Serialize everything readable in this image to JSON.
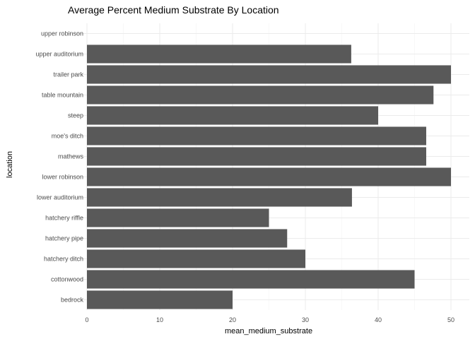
{
  "chart_data": {
    "type": "bar",
    "orientation": "horizontal",
    "title": "Average Percent Medium Substrate By Location",
    "xlabel": "mean_medium_substrate",
    "ylabel": "location",
    "categories": [
      "bedrock",
      "cottonwood",
      "hatchery ditch",
      "hatchery pipe",
      "hatchery riffle",
      "lower auditorium",
      "lower robinson",
      "mathews",
      "moe's ditch",
      "steep",
      "table mountain",
      "trailer park",
      "upper auditorium",
      "upper robinson"
    ],
    "values": [
      20,
      45,
      30,
      27.5,
      25,
      36.4,
      50,
      46.6,
      46.6,
      40,
      47.6,
      50,
      36.3,
      0
    ],
    "xlim": [
      0,
      52.5
    ],
    "xticks": [
      0,
      10,
      20,
      30,
      40,
      50
    ],
    "grid": true,
    "legend": "none",
    "bar_color": "#595959"
  }
}
